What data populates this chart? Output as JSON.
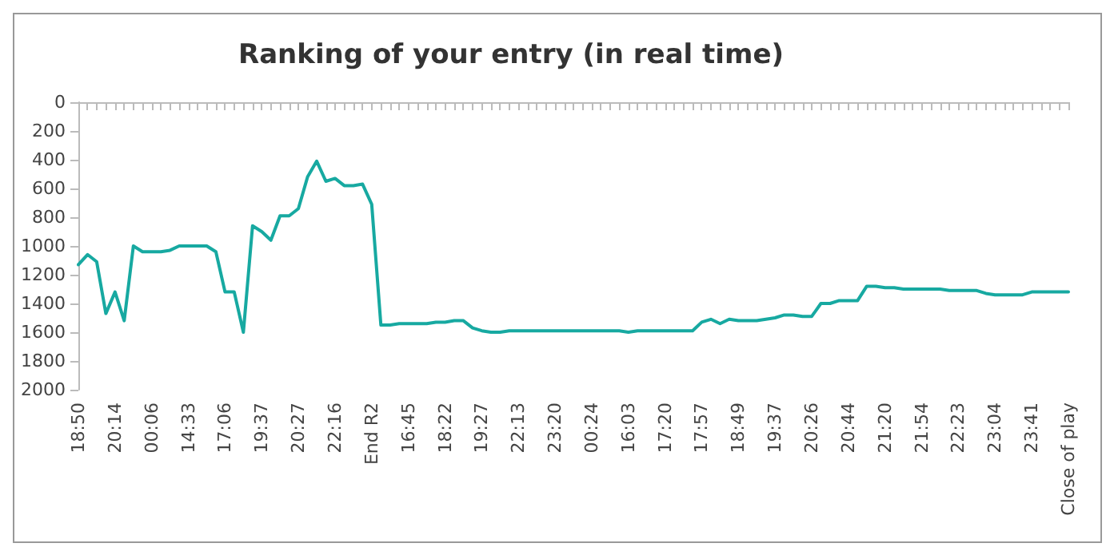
{
  "chart_data": {
    "type": "line",
    "title": "Ranking of your entry (in real time)",
    "categories": [
      "18:50",
      null,
      null,
      null,
      "20:14",
      null,
      null,
      null,
      "00:06",
      null,
      null,
      null,
      "14:33",
      null,
      null,
      null,
      "17:06",
      null,
      null,
      null,
      "19:37",
      null,
      null,
      null,
      "20:27",
      null,
      null,
      null,
      "22:16",
      null,
      null,
      null,
      "End R2",
      null,
      null,
      null,
      "16:45",
      null,
      null,
      null,
      "18:22",
      null,
      null,
      null,
      "19:27",
      null,
      null,
      null,
      "22:13",
      null,
      null,
      null,
      "23:20",
      null,
      null,
      null,
      "00:24",
      null,
      null,
      null,
      "16:03",
      null,
      null,
      null,
      "17:20",
      null,
      null,
      null,
      "17:57",
      null,
      null,
      null,
      "18:49",
      null,
      null,
      null,
      "19:37",
      null,
      null,
      null,
      "20:26",
      null,
      null,
      null,
      "20:44",
      null,
      null,
      null,
      "21:20",
      null,
      null,
      null,
      "21:54",
      null,
      null,
      null,
      "22:23",
      null,
      null,
      null,
      "23:04",
      null,
      null,
      null,
      "23:41",
      null,
      null,
      null,
      "Close of play"
    ],
    "series": [
      {
        "color": "#17a9a1",
        "values": [
          1130,
          1060,
          1110,
          1470,
          1320,
          1520,
          1000,
          1040,
          1040,
          1040,
          1030,
          1000,
          1000,
          1000,
          1000,
          1040,
          1320,
          1320,
          1600,
          860,
          900,
          960,
          790,
          790,
          740,
          520,
          410,
          550,
          530,
          580,
          580,
          570,
          710,
          1550,
          1550,
          1540,
          1540,
          1540,
          1540,
          1530,
          1530,
          1520,
          1520,
          1570,
          1590,
          1600,
          1600,
          1590,
          1590,
          1590,
          1590,
          1590,
          1590,
          1590,
          1590,
          1590,
          1590,
          1590,
          1590,
          1590,
          1600,
          1590,
          1590,
          1590,
          1590,
          1590,
          1590,
          1590,
          1530,
          1510,
          1540,
          1510,
          1520,
          1520,
          1520,
          1510,
          1500,
          1480,
          1480,
          1490,
          1490,
          1400,
          1400,
          1380,
          1380,
          1380,
          1280,
          1280,
          1290,
          1290,
          1300,
          1300,
          1300,
          1300,
          1300,
          1310,
          1310,
          1310,
          1310,
          1330,
          1340,
          1340,
          1340,
          1340,
          1320,
          1320,
          1320,
          1320,
          1320
        ]
      }
    ],
    "ylim": [
      2000,
      0
    ],
    "yticks": [
      0,
      200,
      400,
      600,
      800,
      1000,
      1200,
      1400,
      1600,
      1800,
      2000
    ],
    "grid": false,
    "marker": "none",
    "line_style": "solid"
  }
}
